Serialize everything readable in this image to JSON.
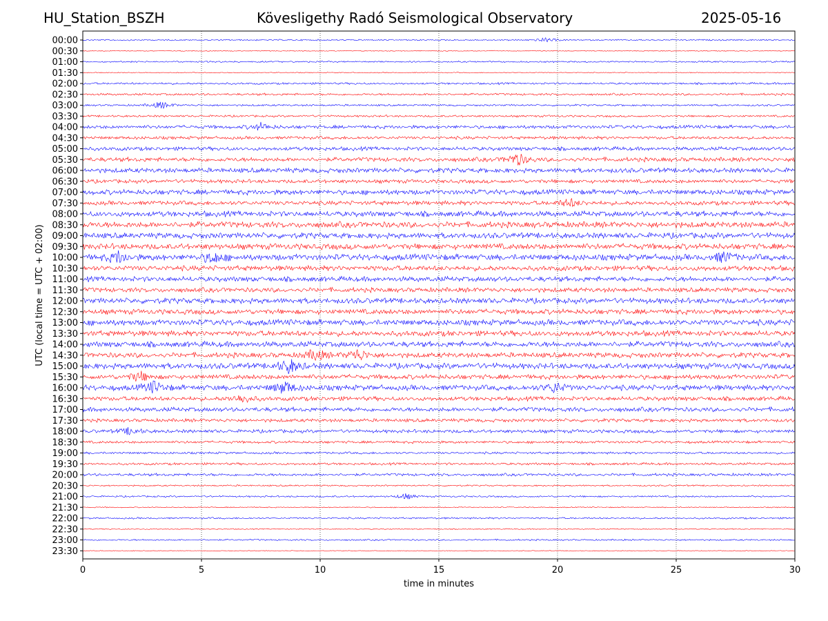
{
  "header": {
    "station": "HU_Station_BSZH",
    "observatory": "Kövesligethy Radó Seismological Observatory",
    "date": "2025-05-16"
  },
  "chart_data": {
    "type": "line",
    "title": "Kövesligethy Radó Seismological Observatory",
    "xlabel": "time in minutes",
    "ylabel": "UTC (local time = UTC + 02:00)",
    "xlim": [
      0,
      30
    ],
    "xticks": [
      0,
      5,
      10,
      15,
      20,
      25,
      30
    ],
    "grid": "vertical dotted at 5-minute ticks",
    "colors": [
      "#0000ff",
      "#ff0000"
    ],
    "row_labels": [
      "00:00",
      "00:30",
      "01:00",
      "01:30",
      "02:00",
      "02:30",
      "03:00",
      "03:30",
      "04:00",
      "04:30",
      "05:00",
      "05:30",
      "06:00",
      "06:30",
      "07:00",
      "07:30",
      "08:00",
      "08:30",
      "09:00",
      "09:30",
      "10:00",
      "10:30",
      "11:00",
      "11:30",
      "12:00",
      "12:30",
      "13:00",
      "13:30",
      "14:00",
      "14:30",
      "15:00",
      "15:30",
      "16:00",
      "16:30",
      "17:00",
      "17:30",
      "18:00",
      "18:30",
      "19:00",
      "19:30",
      "20:00",
      "20:30",
      "21:00",
      "21:30",
      "22:00",
      "22:30",
      "23:00",
      "23:30"
    ],
    "noise_level": [
      0.8,
      0.5,
      0.9,
      0.5,
      1.2,
      1.3,
      1.1,
      1.2,
      2.0,
      1.8,
      2.2,
      2.5,
      2.8,
      2.2,
      3.0,
      2.5,
      3.2,
      3.5,
      3.3,
      3.4,
      3.6,
      3.0,
      3.0,
      2.7,
      3.2,
      3.0,
      3.4,
      3.2,
      3.3,
      3.0,
      3.4,
      2.8,
      3.2,
      2.5,
      2.6,
      2.0,
      2.0,
      1.5,
      1.3,
      1.4,
      1.6,
      0.9,
      1.0,
      0.6,
      1.0,
      0.6,
      0.9,
      0.4
    ],
    "events": [
      {
        "row": 0,
        "minute": 19.5,
        "amp": 3
      },
      {
        "row": 6,
        "minute": 3.3,
        "amp": 5
      },
      {
        "row": 8,
        "minute": 7.5,
        "amp": 5
      },
      {
        "row": 11,
        "minute": 18.3,
        "amp": 9
      },
      {
        "row": 15,
        "minute": 20.5,
        "amp": 6
      },
      {
        "row": 20,
        "minute": 1.5,
        "amp": 8
      },
      {
        "row": 20,
        "minute": 5.5,
        "amp": 8
      },
      {
        "row": 20,
        "minute": 27.0,
        "amp": 7
      },
      {
        "row": 29,
        "minute": 9.8,
        "amp": 8
      },
      {
        "row": 29,
        "minute": 11.6,
        "amp": 8
      },
      {
        "row": 30,
        "minute": 8.7,
        "amp": 10
      },
      {
        "row": 31,
        "minute": 2.4,
        "amp": 7
      },
      {
        "row": 32,
        "minute": 3.0,
        "amp": 8
      },
      {
        "row": 32,
        "minute": 8.5,
        "amp": 9
      },
      {
        "row": 32,
        "minute": 19.9,
        "amp": 7
      },
      {
        "row": 33,
        "minute": 6.7,
        "amp": 6
      },
      {
        "row": 36,
        "minute": 2.0,
        "amp": 5
      },
      {
        "row": 42,
        "minute": 13.6,
        "amp": 4
      }
    ]
  }
}
